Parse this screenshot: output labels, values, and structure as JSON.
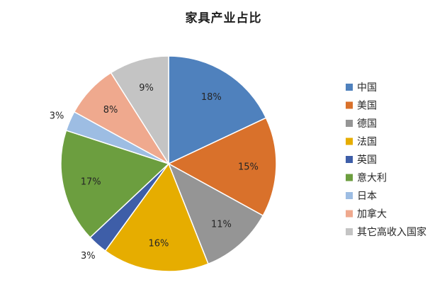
{
  "chart_data": {
    "type": "pie",
    "title": "家具产业占比",
    "legend_position": "right",
    "slices": [
      {
        "name": "中国",
        "value": 18,
        "label": "18%",
        "color": "#4f81bd"
      },
      {
        "name": "美国",
        "value": 15,
        "label": "15%",
        "color": "#d9712b"
      },
      {
        "name": "德国",
        "value": 11,
        "label": "11%",
        "color": "#959595"
      },
      {
        "name": "法国",
        "value": 16,
        "label": "16%",
        "color": "#e6ad00"
      },
      {
        "name": "英国",
        "value": 3,
        "label": "3%",
        "color": "#3e5ea8"
      },
      {
        "name": "意大利",
        "value": 17,
        "label": "17%",
        "color": "#6c9e3f"
      },
      {
        "name": "日本",
        "value": 3,
        "label": "3%",
        "color": "#9dbde3"
      },
      {
        "name": "加拿大",
        "value": 8,
        "label": "8%",
        "color": "#efa98e"
      },
      {
        "name": "其它高收入国家",
        "value": 9,
        "label": "9%",
        "color": "#c4c4c4"
      }
    ]
  }
}
